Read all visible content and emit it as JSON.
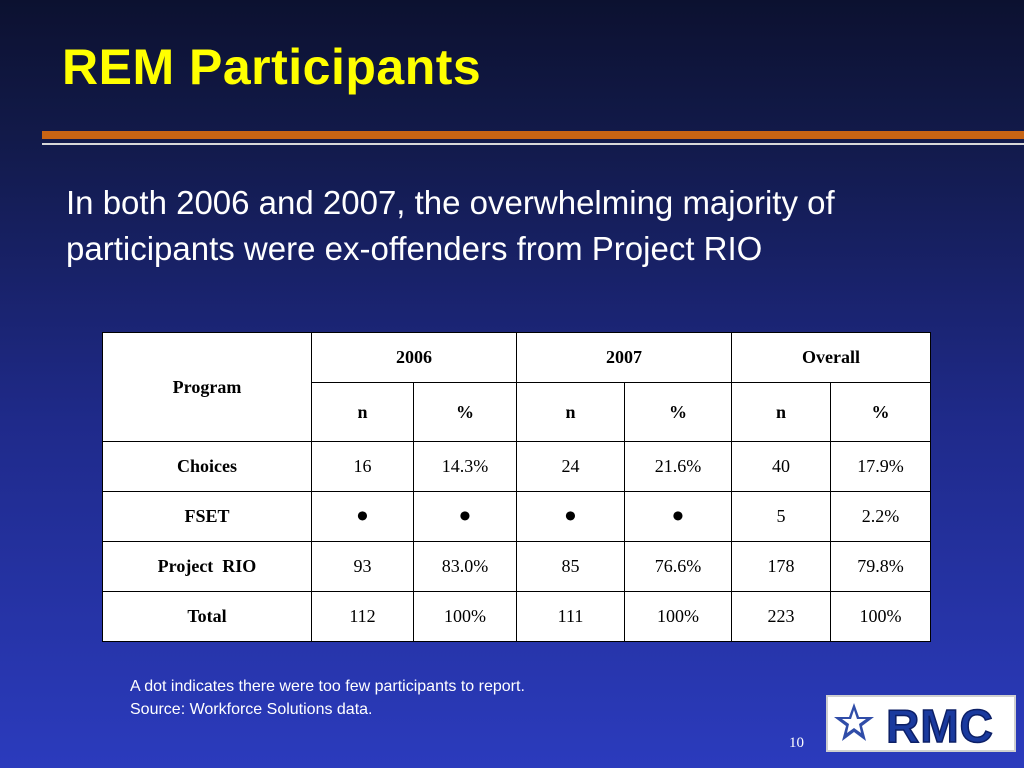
{
  "slide": {
    "title": "REM Participants",
    "body": "In both 2006 and 2007, the overwhelming majority of participants were ex-offenders from Project RIO",
    "footnote_line1": "A dot indicates there were too few participants to report.",
    "footnote_line2": "Source: Workforce Solutions data.",
    "page_number": "10",
    "logo_text": "RMC"
  },
  "table": {
    "program_header": "Program",
    "year_headers": [
      "2006",
      "2007",
      "Overall"
    ],
    "sub_headers": [
      "n",
      "%",
      "n",
      "%",
      "n",
      "%"
    ],
    "rows": [
      {
        "label": "Choices",
        "cells": [
          "16",
          "14.3%",
          "24",
          "21.6%",
          "40",
          "17.9%"
        ]
      },
      {
        "label": "FSET",
        "cells": [
          "•",
          "•",
          "•",
          "•",
          "5",
          "2.2%"
        ]
      },
      {
        "label": "Project  RIO",
        "cells": [
          "93",
          "83.0%",
          "85",
          "76.6%",
          "178",
          "79.8%"
        ]
      },
      {
        "label": "Total",
        "cells": [
          "112",
          "100%",
          "111",
          "100%",
          "223",
          "100%"
        ]
      }
    ]
  },
  "colors": {
    "title": "#ffff00",
    "rule_orange": "#c86414",
    "background_top": "#0c1130",
    "background_bottom": "#2b3bbd",
    "logo_blue": "#1a3a9e"
  }
}
